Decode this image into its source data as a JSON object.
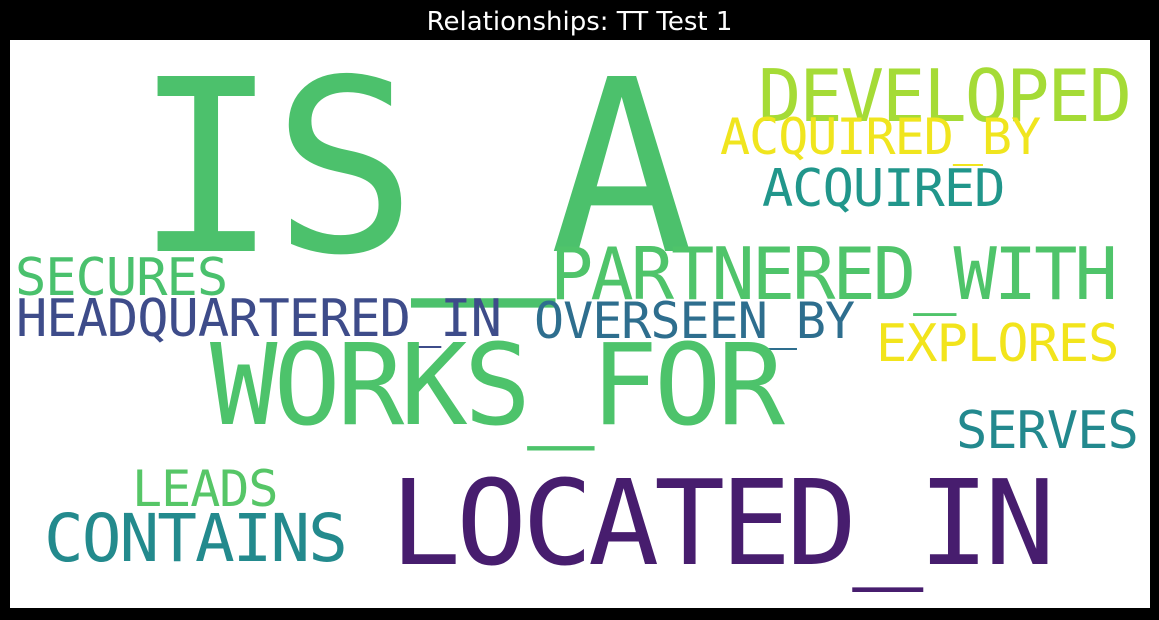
{
  "title": "Relationships: TT Test 1",
  "words": [
    {
      "text": "IS_A",
      "color": "#4cc16c"
    },
    {
      "text": "DEVELOPED",
      "color": "#a5db36"
    },
    {
      "text": "ACQUIRED_BY",
      "color": "#f0e51e"
    },
    {
      "text": "ACQUIRED",
      "color": "#21968b"
    },
    {
      "text": "SECURES",
      "color": "#4ac16d"
    },
    {
      "text": "PARTNERED_WITH",
      "color": "#4fc46a"
    },
    {
      "text": "HEADQUARTERED_IN",
      "color": "#3e4c8a"
    },
    {
      "text": "OVERSEEN_BY",
      "color": "#2e6e8e"
    },
    {
      "text": "EXPLORES",
      "color": "#f2e41c"
    },
    {
      "text": "WORKS_FOR",
      "color": "#4dc36b"
    },
    {
      "text": "SERVES",
      "color": "#23898e"
    },
    {
      "text": "LEADS",
      "color": "#56c667"
    },
    {
      "text": "CONTAINS",
      "color": "#238a8d"
    },
    {
      "text": "LOCATED_IN",
      "color": "#471d6e"
    }
  ]
}
